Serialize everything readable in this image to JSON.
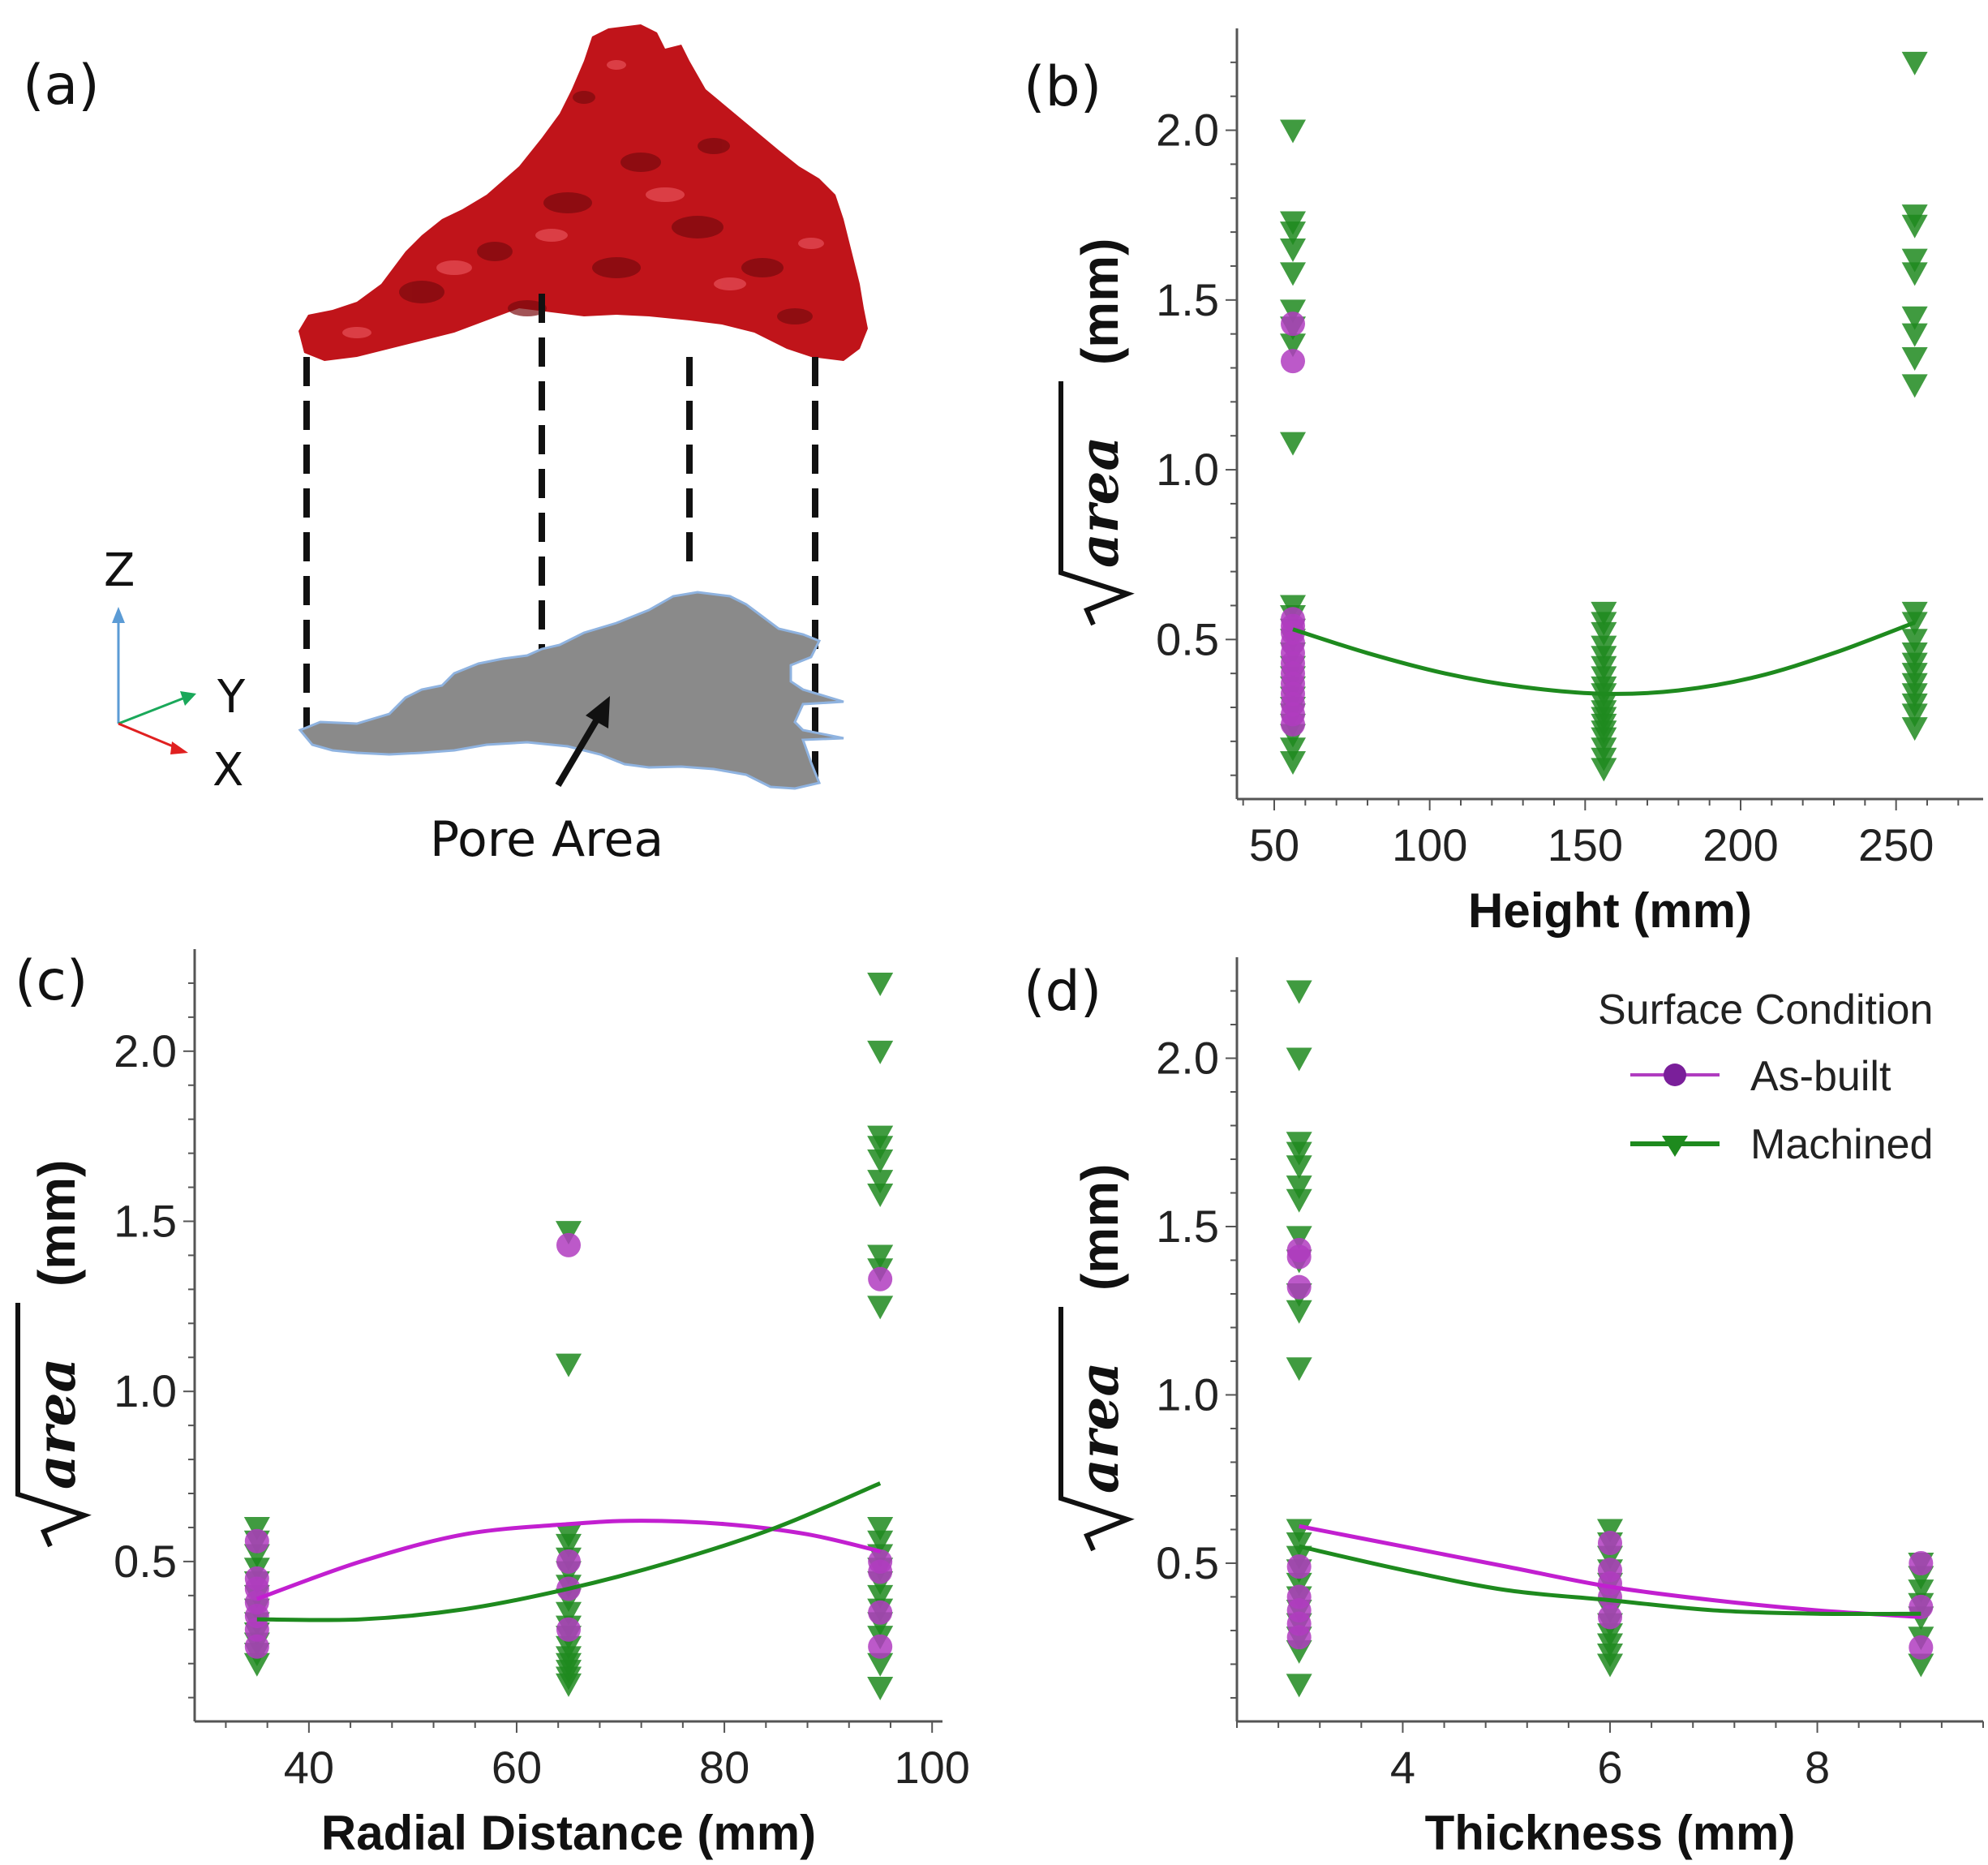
{
  "panel_a": {
    "label": "(a)",
    "annotation": "Pore Area",
    "axes_letters": {
      "z": "Z",
      "y": "Y",
      "x": "X"
    },
    "colors": {
      "pore_3d": "#c0141a",
      "pore_2d": "#8a8a8a",
      "z_axis": "#5b9bd5",
      "y_axis": "#1aa85a",
      "x_axis": "#e02020"
    }
  },
  "legend": {
    "title": "Surface Condition",
    "entries": [
      {
        "label": "As-built",
        "color": "#b03cc0",
        "marker": "circle"
      },
      {
        "label": "Machined",
        "color": "#1e8a1e",
        "marker": "triangle-down"
      }
    ]
  },
  "chart_data": [
    {
      "panel": "(b)",
      "type": "scatter",
      "xlabel": "Height (mm)",
      "ylabel": "area",
      "ylabel_unit": "(mm)",
      "xlim": [
        38,
        278
      ],
      "ylim": [
        0.03,
        2.3
      ],
      "xticks": [
        50,
        100,
        150,
        200,
        250
      ],
      "yticks": [
        0.5,
        1.0,
        1.5,
        2.0
      ],
      "series": [
        {
          "name": "Machined",
          "x": [
            56,
            56,
            56,
            56,
            56,
            56,
            56,
            56,
            56,
            56,
            56,
            56,
            56,
            56,
            56,
            56,
            56,
            56,
            56,
            56,
            56,
            56,
            56,
            56,
            156,
            156,
            156,
            156,
            156,
            156,
            156,
            156,
            156,
            156,
            156,
            156,
            156,
            156,
            156,
            156,
            156,
            156,
            256,
            256,
            256,
            256,
            256,
            256,
            256,
            256,
            256,
            256,
            256,
            256,
            256,
            256,
            256,
            256,
            256,
            256,
            256,
            256
          ],
          "y": [
            2.0,
            1.73,
            1.7,
            1.65,
            1.58,
            1.47,
            1.42,
            1.37,
            1.08,
            0.6,
            0.57,
            0.53,
            0.5,
            0.46,
            0.42,
            0.39,
            0.36,
            0.33,
            0.3,
            0.28,
            0.25,
            0.22,
            0.18,
            0.14,
            0.58,
            0.55,
            0.52,
            0.48,
            0.45,
            0.42,
            0.39,
            0.36,
            0.34,
            0.31,
            0.29,
            0.27,
            0.25,
            0.23,
            0.21,
            0.18,
            0.15,
            0.12,
            2.2,
            1.75,
            1.72,
            1.62,
            1.58,
            1.45,
            1.4,
            1.33,
            1.25,
            0.58,
            0.55,
            0.5,
            0.46,
            0.43,
            0.4,
            0.37,
            0.34,
            0.31,
            0.28,
            0.24
          ]
        },
        {
          "name": "As-built",
          "x": [
            56,
            56,
            56,
            56,
            56,
            56,
            56,
            56,
            56,
            56,
            56,
            56,
            56,
            56
          ],
          "y": [
            1.43,
            1.32,
            0.56,
            0.54,
            0.52,
            0.49,
            0.46,
            0.43,
            0.4,
            0.37,
            0.34,
            0.31,
            0.28,
            0.25
          ]
        }
      ],
      "fits": [
        {
          "name": "Machined",
          "x": [
            56,
            80,
            105,
            130,
            156,
            180,
            205,
            230,
            256
          ],
          "y": [
            0.53,
            0.46,
            0.4,
            0.36,
            0.34,
            0.35,
            0.39,
            0.46,
            0.55
          ]
        }
      ]
    },
    {
      "panel": "(c)",
      "type": "scatter",
      "xlabel": "Radial Distance (mm)",
      "ylabel": "area",
      "ylabel_unit": "(mm)",
      "xlim": [
        29,
        101
      ],
      "ylim": [
        0.03,
        2.3
      ],
      "xticks": [
        40,
        60,
        80,
        100
      ],
      "yticks": [
        0.5,
        1.0,
        1.5,
        2.0
      ],
      "series": [
        {
          "name": "Machined",
          "x": [
            35,
            35,
            35,
            35,
            35,
            35,
            35,
            35,
            35,
            35,
            35,
            35,
            65,
            65,
            65,
            65,
            65,
            65,
            65,
            65,
            65,
            65,
            65,
            65,
            65,
            65,
            65,
            65,
            65,
            95,
            95,
            95,
            95,
            95,
            95,
            95,
            95,
            95,
            95,
            95,
            95,
            95,
            95,
            95,
            95,
            95,
            95,
            95,
            95,
            95
          ],
          "y": [
            0.6,
            0.56,
            0.52,
            0.48,
            0.44,
            0.4,
            0.36,
            0.32,
            0.29,
            0.26,
            0.23,
            0.2,
            1.47,
            1.08,
            0.58,
            0.55,
            0.51,
            0.47,
            0.43,
            0.39,
            0.35,
            0.31,
            0.28,
            0.25,
            0.22,
            0.2,
            0.18,
            0.16,
            0.14,
            2.2,
            2.0,
            1.75,
            1.72,
            1.68,
            1.62,
            1.58,
            1.4,
            1.36,
            1.25,
            0.6,
            0.56,
            0.52,
            0.48,
            0.44,
            0.4,
            0.36,
            0.32,
            0.28,
            0.2,
            0.13
          ]
        },
        {
          "name": "As-built",
          "x": [
            35,
            35,
            35,
            35,
            35,
            35,
            35,
            65,
            65,
            65,
            65,
            95,
            95,
            95,
            95,
            95
          ],
          "y": [
            0.56,
            0.45,
            0.42,
            0.38,
            0.34,
            0.3,
            0.25,
            1.43,
            0.5,
            0.42,
            0.3,
            1.33,
            0.5,
            0.47,
            0.35,
            0.25
          ]
        }
      ],
      "fits": [
        {
          "name": "As-built",
          "x": [
            35,
            45,
            55,
            65,
            72,
            80,
            88,
            95
          ],
          "y": [
            0.39,
            0.5,
            0.58,
            0.61,
            0.62,
            0.61,
            0.58,
            0.53
          ]
        },
        {
          "name": "Machined",
          "x": [
            35,
            45,
            55,
            65,
            75,
            85,
            95
          ],
          "y": [
            0.33,
            0.33,
            0.36,
            0.42,
            0.5,
            0.6,
            0.73
          ]
        }
      ]
    },
    {
      "panel": "(d)",
      "type": "scatter",
      "xlabel": "Thickness (mm)",
      "ylabel": "area",
      "ylabel_unit": "(mm)",
      "xlim": [
        2.4,
        9.6
      ],
      "ylim": [
        0.03,
        2.3
      ],
      "xticks": [
        4,
        6,
        8
      ],
      "yticks": [
        0.5,
        1.0,
        1.5,
        2.0
      ],
      "series": [
        {
          "name": "Machined",
          "x": [
            3,
            3,
            3,
            3,
            3,
            3,
            3,
            3,
            3,
            3,
            3,
            3,
            3,
            3,
            3,
            3,
            3,
            3,
            3,
            3,
            3,
            3,
            3,
            6,
            6,
            6,
            6,
            6,
            6,
            6,
            6,
            6,
            6,
            6,
            6,
            9,
            9,
            9,
            9,
            9,
            9,
            9
          ],
          "y": [
            2.2,
            2.0,
            1.75,
            1.72,
            1.68,
            1.62,
            1.58,
            1.47,
            1.4,
            1.3,
            1.25,
            1.08,
            0.6,
            0.56,
            0.52,
            0.48,
            0.44,
            0.4,
            0.36,
            0.32,
            0.28,
            0.24,
            0.14,
            0.6,
            0.56,
            0.52,
            0.48,
            0.44,
            0.4,
            0.36,
            0.32,
            0.29,
            0.26,
            0.23,
            0.2,
            0.5,
            0.46,
            0.42,
            0.38,
            0.34,
            0.28,
            0.2
          ]
        },
        {
          "name": "As-built",
          "x": [
            3,
            3,
            3,
            3,
            3,
            3,
            3,
            3,
            6,
            6,
            6,
            6,
            6,
            9,
            9,
            9
          ],
          "y": [
            1.43,
            1.41,
            1.32,
            0.49,
            0.4,
            0.36,
            0.32,
            0.28,
            0.56,
            0.48,
            0.44,
            0.4,
            0.34,
            0.5,
            0.37,
            0.25
          ]
        }
      ],
      "fits": [
        {
          "name": "As-built",
          "x": [
            3,
            4,
            5,
            6,
            7,
            8,
            9
          ],
          "y": [
            0.61,
            0.55,
            0.49,
            0.43,
            0.39,
            0.36,
            0.34
          ]
        },
        {
          "name": "Machined",
          "x": [
            3,
            4,
            5,
            6,
            7,
            8,
            9
          ],
          "y": [
            0.55,
            0.48,
            0.42,
            0.39,
            0.36,
            0.35,
            0.35
          ]
        }
      ]
    }
  ]
}
